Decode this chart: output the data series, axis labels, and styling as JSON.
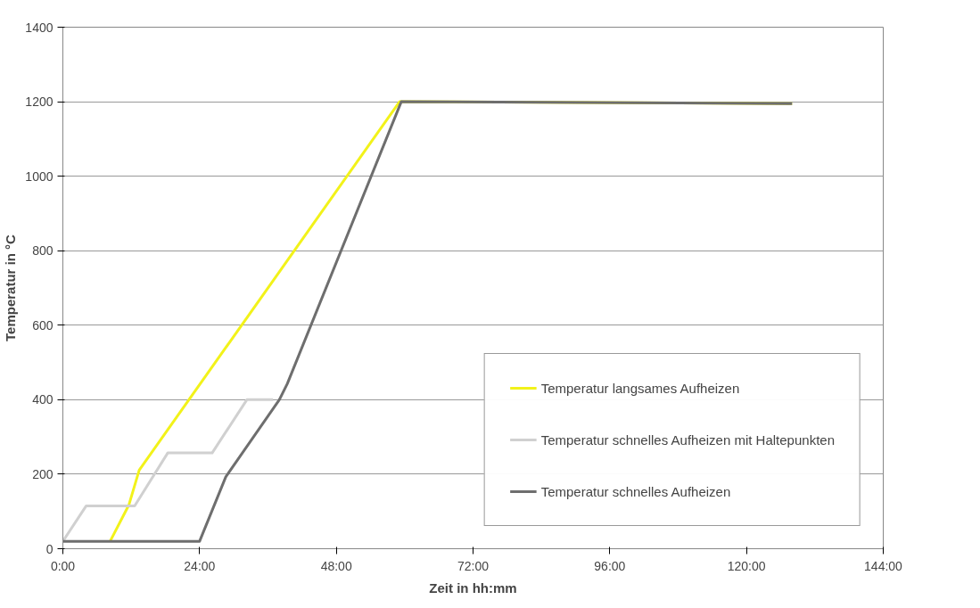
{
  "chart_data": {
    "type": "line",
    "xlabel": "Zeit in hh:mm",
    "ylabel": "Temperatur in °C",
    "xlim": [
      0,
      144
    ],
    "xticks": [
      {
        "value": 0,
        "label": "0:00"
      },
      {
        "value": 24,
        "label": "24:00"
      },
      {
        "value": 48,
        "label": "48:00"
      },
      {
        "value": 72,
        "label": "72:00"
      },
      {
        "value": 96,
        "label": "96:00"
      },
      {
        "value": 120,
        "label": "120:00"
      },
      {
        "value": 144,
        "label": "144:00"
      }
    ],
    "ylim": [
      0,
      1400
    ],
    "yticks": [
      0,
      200,
      400,
      600,
      800,
      1000,
      1200,
      1400
    ],
    "grid": "y",
    "legend": "bottom right",
    "marker": "none",
    "line_style": "solid",
    "series": [
      {
        "name": "Temperatur langsames Aufheizen",
        "color": "#f2f21a",
        "x": [
          8.3,
          11.6,
          13.4,
          59.1,
          128
        ],
        "values": [
          20,
          118,
          211,
          1200,
          1195
        ]
      },
      {
        "name": "Temperatur schnelles Aufheizen mit Haltepunkten",
        "color": "#d0d0d0",
        "x": [
          0,
          4.1,
          12.6,
          18.4,
          26.2,
          32.3,
          36.9
        ],
        "values": [
          20,
          115,
          115,
          257,
          257,
          400,
          400
        ]
      },
      {
        "name": "Temperatur schnelles Aufheizen",
        "color": "#6e6e6e",
        "x": [
          0,
          24,
          28.6,
          38,
          39.4,
          59.4,
          128
        ],
        "values": [
          20,
          20,
          193,
          400,
          443,
          1200,
          1195
        ]
      }
    ]
  }
}
